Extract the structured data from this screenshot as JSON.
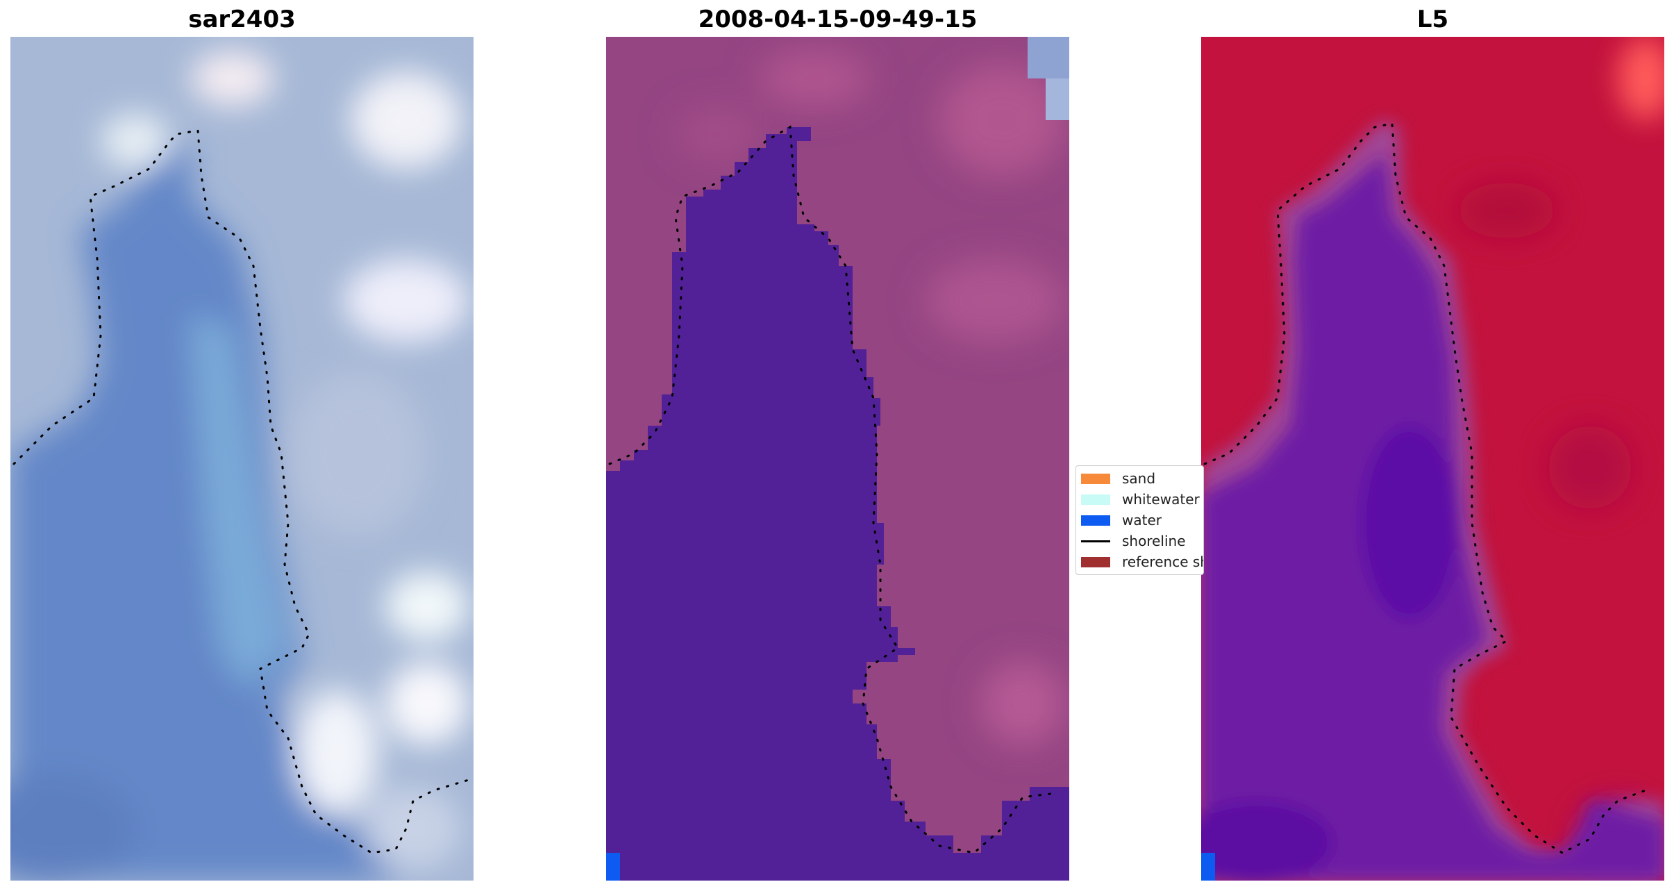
{
  "panels": [
    {
      "title": "sar2403"
    },
    {
      "title": "2008-04-15-09-49-15"
    },
    {
      "title": "L5"
    }
  ],
  "legend": {
    "items": [
      {
        "label": "sand",
        "type": "patch",
        "color": "#f78a3a"
      },
      {
        "label": "whitewater",
        "type": "patch",
        "color": "#c8fbf6"
      },
      {
        "label": "water",
        "type": "patch",
        "color": "#0d5bf0"
      },
      {
        "label": "shoreline",
        "type": "line",
        "color": "#000000"
      },
      {
        "label": "reference shoreline",
        "type": "patch",
        "color": "#a03030"
      }
    ]
  },
  "colors": {
    "rgb_water": "#6b8fcf",
    "rgb_land": "#a9bcd8",
    "classified_water": "#522197",
    "classified_land": "#9a4a86",
    "index_water": "#6a1aa5",
    "index_land": "#c2123d"
  }
}
